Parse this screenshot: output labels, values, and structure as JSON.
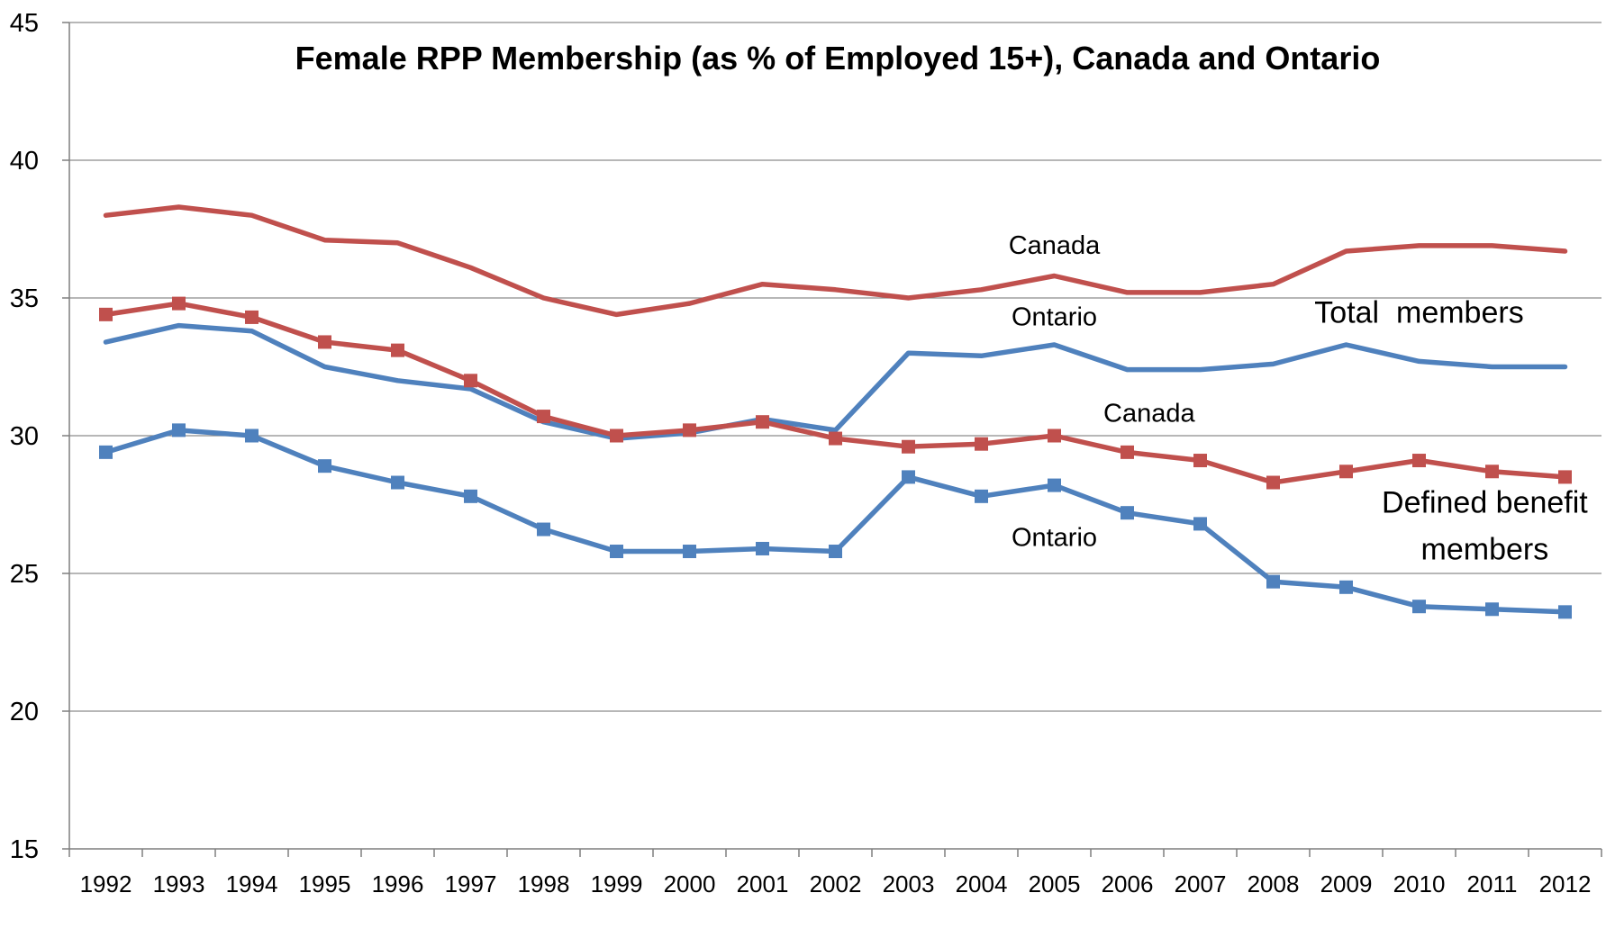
{
  "chart_data": {
    "type": "line",
    "title": "Female RPP Membership (as % of Employed 15+), Canada and Ontario",
    "xlabel": "",
    "ylabel": "",
    "ylim": [
      15,
      45
    ],
    "yticks": [
      15,
      20,
      25,
      30,
      35,
      40,
      45
    ],
    "grid": true,
    "legend": "none",
    "x": [
      "1992",
      "1993",
      "1994",
      "1995",
      "1996",
      "1997",
      "1998",
      "1999",
      "2000",
      "2001",
      "2002",
      "2003",
      "2004",
      "2005",
      "2006",
      "2007",
      "2008",
      "2009",
      "2010",
      "2011",
      "2012"
    ],
    "series": [
      {
        "color": "#c0504d",
        "marker": "none",
        "values": [
          38.0,
          38.3,
          38.0,
          37.1,
          37.0,
          36.1,
          35.0,
          34.4,
          34.8,
          35.5,
          35.3,
          35.0,
          35.3,
          35.8,
          35.2,
          35.2,
          35.5,
          36.7,
          36.9,
          36.9,
          36.7
        ]
      },
      {
        "color": "#4f81bd",
        "marker": "none",
        "values": [
          33.4,
          34.0,
          33.8,
          32.5,
          32.0,
          31.7,
          30.5,
          29.9,
          30.1,
          30.6,
          30.2,
          33.0,
          32.9,
          33.3,
          32.4,
          32.4,
          32.6,
          33.3,
          32.7,
          32.5,
          32.5
        ]
      },
      {
        "color": "#c0504d",
        "marker": "square",
        "values": [
          34.4,
          34.8,
          34.3,
          33.4,
          33.1,
          32.0,
          30.7,
          30.0,
          30.2,
          30.5,
          29.9,
          29.6,
          29.7,
          30.0,
          29.4,
          29.1,
          28.3,
          28.7,
          29.1,
          28.7,
          28.5
        ]
      },
      {
        "color": "#4f81bd",
        "marker": "square",
        "values": [
          29.4,
          30.2,
          30.0,
          28.9,
          28.3,
          27.8,
          26.6,
          25.8,
          25.8,
          25.9,
          25.8,
          28.5,
          27.8,
          28.2,
          27.2,
          26.8,
          24.7,
          24.5,
          23.8,
          23.7,
          23.6
        ]
      }
    ],
    "annotations": [
      {
        "text": "Canada",
        "x": "2005",
        "y": 36.6,
        "size": "normal"
      },
      {
        "text": "Ontario",
        "x": "2005",
        "y": 34.0,
        "size": "normal"
      },
      {
        "text": "Total  members",
        "x": "2010",
        "y": 34.1,
        "size": "large"
      },
      {
        "text": "Canada",
        "x": "2006.3",
        "y": 30.5,
        "size": "normal"
      },
      {
        "text": "Defined benefit",
        "x": "2010.9",
        "y": 27.2,
        "size": "large"
      },
      {
        "text": "members",
        "x": "2010.9",
        "y": 25.5,
        "size": "large"
      },
      {
        "text": "Ontario",
        "x": "2005",
        "y": 26.0,
        "size": "normal"
      }
    ]
  }
}
